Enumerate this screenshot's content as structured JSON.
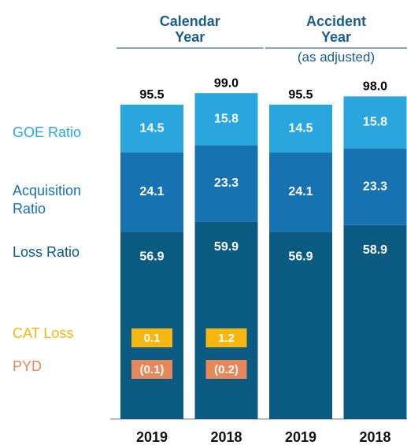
{
  "chart_data": {
    "type": "stacked_bar",
    "groups": [
      {
        "name": "Calendar Year"
      },
      {
        "name": "Accident Year",
        "note": "(as adjusted)"
      }
    ],
    "categories": [
      "2019",
      "2018",
      "2019",
      "2018"
    ],
    "series": [
      {
        "name": "Loss Ratio",
        "color": "#0b5a82",
        "values": [
          56.9,
          59.9,
          56.9,
          58.9
        ]
      },
      {
        "name": "Acquisition Ratio",
        "color": "#1672b0",
        "values": [
          24.1,
          23.3,
          24.1,
          23.3
        ]
      },
      {
        "name": "GOE Ratio",
        "color": "#2aa6df",
        "values": [
          14.5,
          15.8,
          14.5,
          15.8
        ]
      }
    ],
    "totals": {
      "values": [
        95.5,
        99,
        95.5,
        98
      ],
      "value_labels": [
        "95.5",
        "99.0",
        "95.5",
        "98.0"
      ]
    },
    "cat_loss": {
      "name": "CAT Loss",
      "color": "#f6b80f",
      "values": [
        0.1,
        1.2,
        null,
        null
      ]
    },
    "pyd": {
      "name": "PYD",
      "color": "#e8875a",
      "values": [
        -0.1,
        -0.2,
        null,
        null
      ],
      "value_labels": [
        "(0.1)",
        "(0.2)",
        null,
        null
      ]
    }
  }
}
